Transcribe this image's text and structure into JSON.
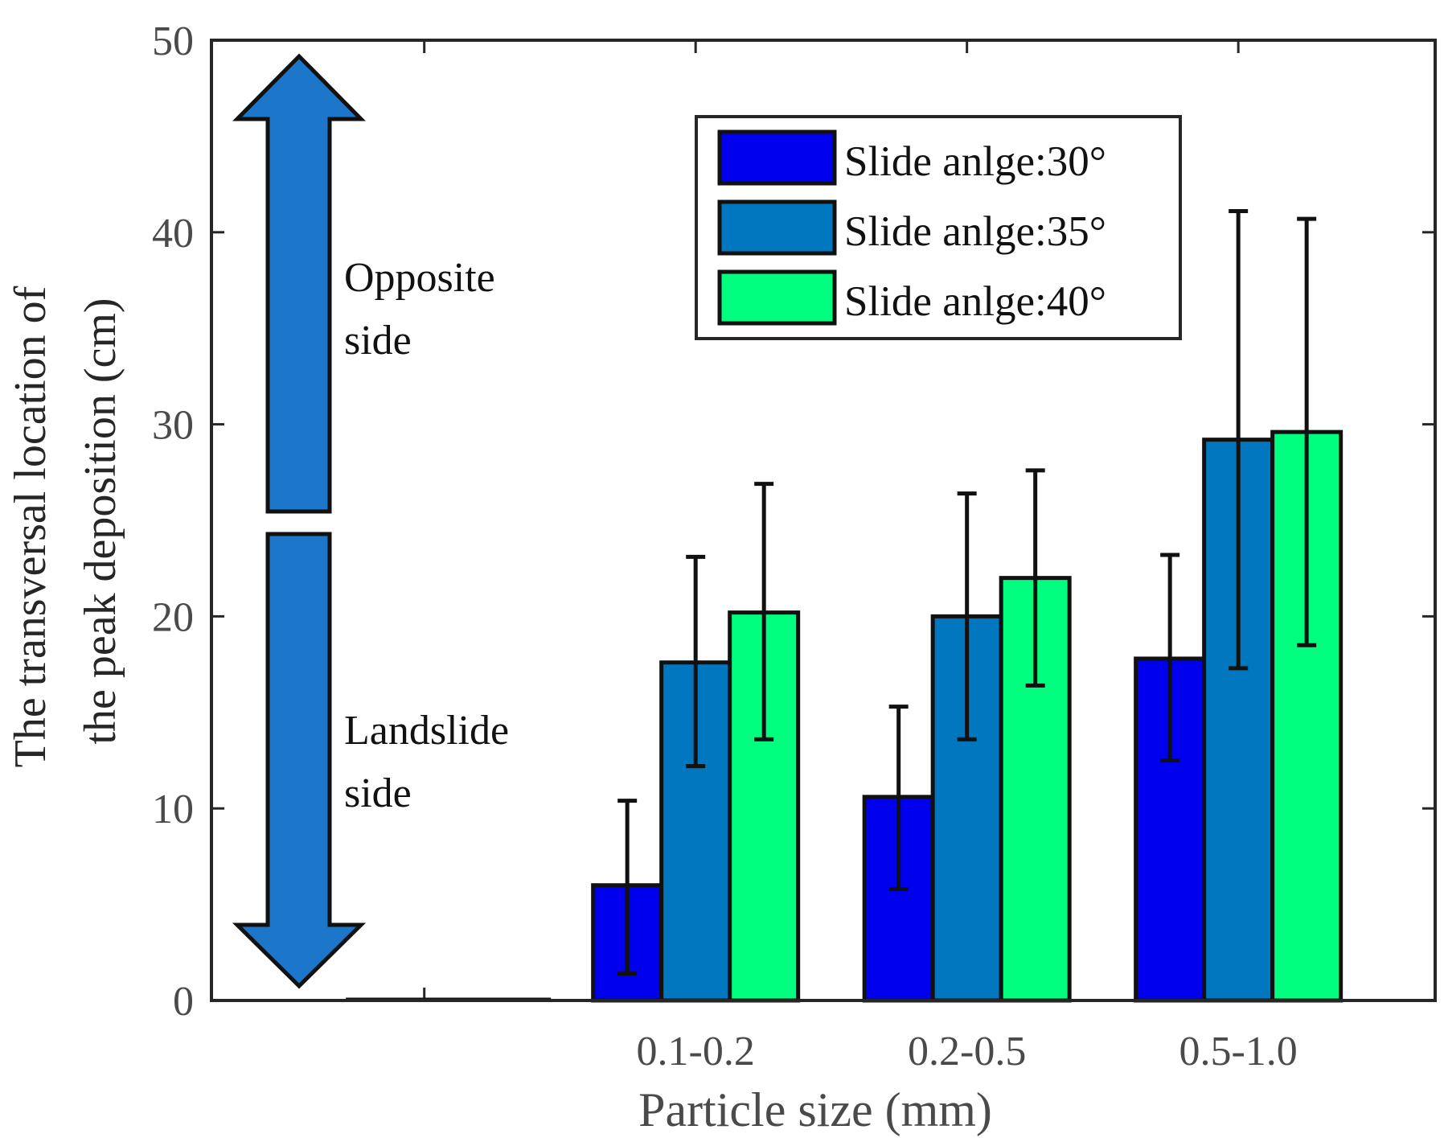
{
  "chart_data": {
    "type": "bar",
    "title": "",
    "categories": [
      "",
      "0.1-0.2",
      "0.2-0.5",
      "0.5-1.0"
    ],
    "xlabel": "Particle size (mm)",
    "ylabel_lines": [
      "The transversal location of",
      "the peak deposition (cm)"
    ],
    "ylim": [
      0,
      50
    ],
    "yticks": [
      0,
      10,
      20,
      30,
      40,
      50
    ],
    "grid": false,
    "legend_position": "top-right",
    "series": [
      {
        "name": "Slide anlge:30°",
        "color": "#0000ee",
        "values": [
          0,
          6,
          10.6,
          17.8
        ],
        "err_low": [
          0,
          1.4,
          5.8,
          12.5
        ],
        "err_high": [
          0,
          10.4,
          15.3,
          23.2
        ]
      },
      {
        "name": "Slide anlge:35°",
        "color": "#0077bf",
        "values": [
          0,
          17.6,
          20,
          29.2
        ],
        "err_low": [
          0,
          12.2,
          13.6,
          17.3
        ],
        "err_high": [
          0,
          23.1,
          26.4,
          41.1
        ]
      },
      {
        "name": "Slide anlge:40°",
        "color": "#00ff7f",
        "values": [
          0,
          20.2,
          22,
          29.6
        ],
        "err_low": [
          0,
          13.6,
          16.4,
          18.5
        ],
        "err_high": [
          0,
          26.9,
          27.6,
          40.7
        ]
      }
    ],
    "annotations": {
      "arrow_color": "#1c76c9",
      "opposite_lines": [
        "Opposite",
        "side"
      ],
      "landslide_lines": [
        "Landslide",
        "side"
      ]
    }
  }
}
